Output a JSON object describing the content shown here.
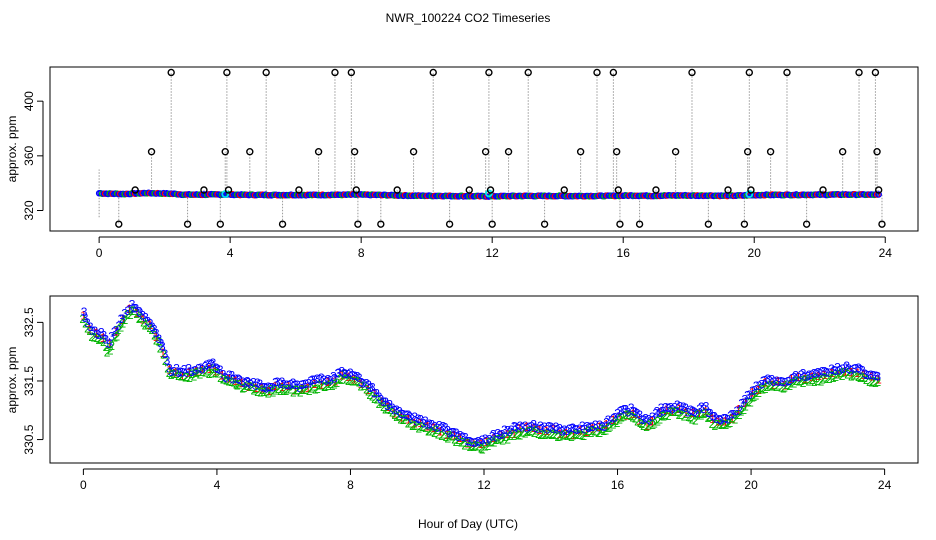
{
  "title": "NWR_100224  CO2 Timeseries",
  "xlabel": "Hour of Day (UTC)",
  "colors": {
    "frame": "#000000",
    "guide": "#9a9a9a",
    "flag": "#000000",
    "series_1": "#ff0000",
    "series_2": "#00b400",
    "series_3": "#0000ff",
    "highlight": "#00e5ee"
  },
  "chart_data": [
    {
      "type": "scatter",
      "panel": "top",
      "ylabel": "approx. ppm",
      "xlim": [
        -1.5,
        25
      ],
      "ylim": [
        305,
        425
      ],
      "x_ticks": [
        0,
        4,
        8,
        12,
        16,
        20,
        24
      ],
      "y_ticks": [
        320,
        360,
        400
      ],
      "baseline_ppm": 331.5,
      "flagged_points": [
        {
          "x": 0.6,
          "y": 310
        },
        {
          "x": 1.1,
          "y": 335
        },
        {
          "x": 1.6,
          "y": 363
        },
        {
          "x": 2.2,
          "y": 421
        },
        {
          "x": 2.7,
          "y": 310
        },
        {
          "x": 3.2,
          "y": 335
        },
        {
          "x": 3.7,
          "y": 310
        },
        {
          "x": 3.85,
          "y": 363
        },
        {
          "x": 3.9,
          "y": 421
        },
        {
          "x": 3.95,
          "y": 335
        },
        {
          "x": 4.6,
          "y": 363
        },
        {
          "x": 5.1,
          "y": 421
        },
        {
          "x": 5.6,
          "y": 310
        },
        {
          "x": 6.1,
          "y": 335
        },
        {
          "x": 6.7,
          "y": 363
        },
        {
          "x": 7.2,
          "y": 421
        },
        {
          "x": 7.7,
          "y": 421
        },
        {
          "x": 7.8,
          "y": 363
        },
        {
          "x": 7.85,
          "y": 335
        },
        {
          "x": 7.9,
          "y": 310
        },
        {
          "x": 8.6,
          "y": 310
        },
        {
          "x": 9.1,
          "y": 335
        },
        {
          "x": 9.6,
          "y": 363
        },
        {
          "x": 10.2,
          "y": 421
        },
        {
          "x": 10.7,
          "y": 310
        },
        {
          "x": 11.3,
          "y": 335
        },
        {
          "x": 11.8,
          "y": 363
        },
        {
          "x": 11.9,
          "y": 421
        },
        {
          "x": 11.95,
          "y": 335
        },
        {
          "x": 12.0,
          "y": 310
        },
        {
          "x": 12.5,
          "y": 363
        },
        {
          "x": 13.1,
          "y": 421
        },
        {
          "x": 13.6,
          "y": 310
        },
        {
          "x": 14.2,
          "y": 335
        },
        {
          "x": 14.7,
          "y": 363
        },
        {
          "x": 15.2,
          "y": 421
        },
        {
          "x": 15.7,
          "y": 421
        },
        {
          "x": 15.8,
          "y": 363
        },
        {
          "x": 15.85,
          "y": 335
        },
        {
          "x": 15.9,
          "y": 310
        },
        {
          "x": 16.5,
          "y": 310
        },
        {
          "x": 17.0,
          "y": 335
        },
        {
          "x": 17.6,
          "y": 363
        },
        {
          "x": 18.1,
          "y": 421
        },
        {
          "x": 18.6,
          "y": 310
        },
        {
          "x": 19.2,
          "y": 335
        },
        {
          "x": 19.7,
          "y": 310
        },
        {
          "x": 19.8,
          "y": 363
        },
        {
          "x": 19.85,
          "y": 421
        },
        {
          "x": 19.9,
          "y": 335
        },
        {
          "x": 20.5,
          "y": 363
        },
        {
          "x": 21.0,
          "y": 421
        },
        {
          "x": 21.6,
          "y": 310
        },
        {
          "x": 22.1,
          "y": 335
        },
        {
          "x": 22.7,
          "y": 363
        },
        {
          "x": 23.2,
          "y": 421
        },
        {
          "x": 23.7,
          "y": 421
        },
        {
          "x": 23.75,
          "y": 363
        },
        {
          "x": 23.8,
          "y": 335
        },
        {
          "x": 23.9,
          "y": 310
        }
      ],
      "highlight_points": [
        {
          "x": 3.85,
          "y": 332
        },
        {
          "x": 11.9,
          "y": 332.5
        },
        {
          "x": 19.85,
          "y": 332
        }
      ]
    },
    {
      "type": "scatter",
      "panel": "bottom",
      "ylabel": "approx. ppm",
      "xlim": [
        -1.0,
        25.0
      ],
      "ylim": [
        330.1,
        332.95
      ],
      "x_ticks": [
        0,
        4,
        8,
        12,
        16,
        20,
        24
      ],
      "y_ticks": [
        330.5,
        331.5,
        332.5
      ],
      "series": [
        {
          "name": "1",
          "color": "#ff0000"
        },
        {
          "name": "2",
          "color": "#00b400"
        },
        {
          "name": "3",
          "color": "#0000ff"
        }
      ],
      "trend": [
        {
          "x": 0.0,
          "y": 332.6
        },
        {
          "x": 0.3,
          "y": 332.3
        },
        {
          "x": 0.55,
          "y": 332.25
        },
        {
          "x": 0.75,
          "y": 332.05
        },
        {
          "x": 1.0,
          "y": 332.35
        },
        {
          "x": 1.2,
          "y": 332.55
        },
        {
          "x": 1.45,
          "y": 332.75
        },
        {
          "x": 1.7,
          "y": 332.6
        },
        {
          "x": 2.0,
          "y": 332.45
        },
        {
          "x": 2.3,
          "y": 332.15
        },
        {
          "x": 2.6,
          "y": 331.65
        },
        {
          "x": 3.0,
          "y": 331.6
        },
        {
          "x": 3.5,
          "y": 331.68
        },
        {
          "x": 3.9,
          "y": 331.72
        },
        {
          "x": 4.2,
          "y": 331.55
        },
        {
          "x": 4.8,
          "y": 331.45
        },
        {
          "x": 5.5,
          "y": 331.35
        },
        {
          "x": 6.0,
          "y": 331.42
        },
        {
          "x": 6.5,
          "y": 331.35
        },
        {
          "x": 7.0,
          "y": 331.45
        },
        {
          "x": 7.5,
          "y": 331.5
        },
        {
          "x": 7.8,
          "y": 331.62
        },
        {
          "x": 8.1,
          "y": 331.55
        },
        {
          "x": 8.5,
          "y": 331.4
        },
        {
          "x": 9.0,
          "y": 331.1
        },
        {
          "x": 9.5,
          "y": 330.9
        },
        {
          "x": 10.0,
          "y": 330.78
        },
        {
          "x": 10.5,
          "y": 330.7
        },
        {
          "x": 11.0,
          "y": 330.58
        },
        {
          "x": 11.5,
          "y": 330.45
        },
        {
          "x": 11.9,
          "y": 330.4
        },
        {
          "x": 12.3,
          "y": 330.5
        },
        {
          "x": 12.8,
          "y": 330.62
        },
        {
          "x": 13.3,
          "y": 330.68
        },
        {
          "x": 14.0,
          "y": 330.65
        },
        {
          "x": 14.5,
          "y": 330.6
        },
        {
          "x": 15.0,
          "y": 330.65
        },
        {
          "x": 15.6,
          "y": 330.7
        },
        {
          "x": 16.1,
          "y": 330.92
        },
        {
          "x": 16.4,
          "y": 330.95
        },
        {
          "x": 16.9,
          "y": 330.75
        },
        {
          "x": 17.3,
          "y": 330.95
        },
        {
          "x": 17.8,
          "y": 331.02
        },
        {
          "x": 18.3,
          "y": 330.9
        },
        {
          "x": 18.6,
          "y": 331.0
        },
        {
          "x": 18.9,
          "y": 330.82
        },
        {
          "x": 19.2,
          "y": 330.78
        },
        {
          "x": 19.6,
          "y": 330.95
        },
        {
          "x": 20.0,
          "y": 331.25
        },
        {
          "x": 20.4,
          "y": 331.45
        },
        {
          "x": 21.0,
          "y": 331.45
        },
        {
          "x": 21.5,
          "y": 331.55
        },
        {
          "x": 22.2,
          "y": 331.58
        },
        {
          "x": 22.8,
          "y": 331.68
        },
        {
          "x": 23.3,
          "y": 331.62
        },
        {
          "x": 23.8,
          "y": 331.5
        }
      ]
    }
  ]
}
